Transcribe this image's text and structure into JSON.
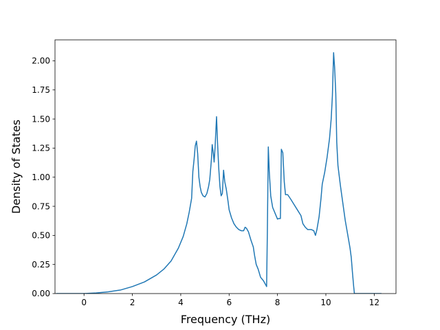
{
  "chart_data": {
    "type": "line",
    "xlabel": "Frequency (THz)",
    "ylabel": "Density of States",
    "xlim": [
      -1.2,
      12.9
    ],
    "ylim": [
      0.0,
      2.18
    ],
    "grid": false,
    "x_ticks": [
      0,
      2,
      4,
      6,
      8,
      10,
      12
    ],
    "x_tick_labels": [
      "0",
      "2",
      "4",
      "6",
      "8",
      "10",
      "12"
    ],
    "y_ticks": [
      0.0,
      0.25,
      0.5,
      0.75,
      1.0,
      1.25,
      1.5,
      1.75,
      2.0
    ],
    "y_tick_labels": [
      "0.00",
      "0.25",
      "0.50",
      "0.75",
      "1.00",
      "1.25",
      "1.50",
      "1.75",
      "2.00"
    ],
    "series": [
      {
        "color": "#1f77b4",
        "points": [
          [
            -1.15,
            0.0
          ],
          [
            0.0,
            0.0
          ],
          [
            0.5,
            0.005
          ],
          [
            1.0,
            0.015
          ],
          [
            1.5,
            0.03
          ],
          [
            2.0,
            0.06
          ],
          [
            2.5,
            0.1
          ],
          [
            3.0,
            0.16
          ],
          [
            3.3,
            0.21
          ],
          [
            3.6,
            0.28
          ],
          [
            3.9,
            0.39
          ],
          [
            4.1,
            0.49
          ],
          [
            4.25,
            0.6
          ],
          [
            4.35,
            0.7
          ],
          [
            4.45,
            0.82
          ],
          [
            4.5,
            1.05
          ],
          [
            4.55,
            1.15
          ],
          [
            4.6,
            1.27
          ],
          [
            4.65,
            1.31
          ],
          [
            4.7,
            1.2
          ],
          [
            4.75,
            1.0
          ],
          [
            4.8,
            0.92
          ],
          [
            4.85,
            0.87
          ],
          [
            4.92,
            0.84
          ],
          [
            5.0,
            0.83
          ],
          [
            5.08,
            0.86
          ],
          [
            5.15,
            0.92
          ],
          [
            5.2,
            0.98
          ],
          [
            5.27,
            1.16
          ],
          [
            5.3,
            1.28
          ],
          [
            5.35,
            1.2
          ],
          [
            5.38,
            1.13
          ],
          [
            5.42,
            1.26
          ],
          [
            5.48,
            1.52
          ],
          [
            5.52,
            1.3
          ],
          [
            5.57,
            1.08
          ],
          [
            5.62,
            0.92
          ],
          [
            5.67,
            0.84
          ],
          [
            5.72,
            0.86
          ],
          [
            5.77,
            1.06
          ],
          [
            5.82,
            0.96
          ],
          [
            5.88,
            0.9
          ],
          [
            5.95,
            0.8
          ],
          [
            6.0,
            0.72
          ],
          [
            6.1,
            0.65
          ],
          [
            6.2,
            0.6
          ],
          [
            6.3,
            0.57
          ],
          [
            6.4,
            0.55
          ],
          [
            6.5,
            0.54
          ],
          [
            6.6,
            0.54
          ],
          [
            6.66,
            0.57
          ],
          [
            6.72,
            0.56
          ],
          [
            6.8,
            0.53
          ],
          [
            6.9,
            0.46
          ],
          [
            7.0,
            0.4
          ],
          [
            7.05,
            0.33
          ],
          [
            7.12,
            0.25
          ],
          [
            7.2,
            0.21
          ],
          [
            7.3,
            0.14
          ],
          [
            7.42,
            0.11
          ],
          [
            7.5,
            0.08
          ],
          [
            7.55,
            0.06
          ],
          [
            7.58,
            0.52
          ],
          [
            7.62,
            1.26
          ],
          [
            7.66,
            1.05
          ],
          [
            7.72,
            0.84
          ],
          [
            7.8,
            0.74
          ],
          [
            7.9,
            0.69
          ],
          [
            8.0,
            0.64
          ],
          [
            8.05,
            0.645
          ],
          [
            8.12,
            0.645
          ],
          [
            8.16,
            1.24
          ],
          [
            8.22,
            1.21
          ],
          [
            8.28,
            0.96
          ],
          [
            8.33,
            0.85
          ],
          [
            8.42,
            0.85
          ],
          [
            8.55,
            0.81
          ],
          [
            8.7,
            0.76
          ],
          [
            8.85,
            0.71
          ],
          [
            8.97,
            0.67
          ],
          [
            9.05,
            0.6
          ],
          [
            9.15,
            0.57
          ],
          [
            9.25,
            0.55
          ],
          [
            9.4,
            0.55
          ],
          [
            9.5,
            0.54
          ],
          [
            9.57,
            0.5
          ],
          [
            9.63,
            0.55
          ],
          [
            9.72,
            0.66
          ],
          [
            9.8,
            0.82
          ],
          [
            9.85,
            0.94
          ],
          [
            9.95,
            1.04
          ],
          [
            10.05,
            1.17
          ],
          [
            10.15,
            1.33
          ],
          [
            10.22,
            1.5
          ],
          [
            10.27,
            1.7
          ],
          [
            10.32,
            2.07
          ],
          [
            10.36,
            1.95
          ],
          [
            10.41,
            1.72
          ],
          [
            10.45,
            1.3
          ],
          [
            10.5,
            1.1
          ],
          [
            10.6,
            0.93
          ],
          [
            10.7,
            0.78
          ],
          [
            10.8,
            0.63
          ],
          [
            10.9,
            0.51
          ],
          [
            11.0,
            0.39
          ],
          [
            11.05,
            0.31
          ],
          [
            11.1,
            0.18
          ],
          [
            11.15,
            0.06
          ],
          [
            11.18,
            0.0
          ],
          [
            11.5,
            0.0
          ],
          [
            12.0,
            0.0
          ],
          [
            12.3,
            0.0
          ]
        ]
      }
    ]
  }
}
